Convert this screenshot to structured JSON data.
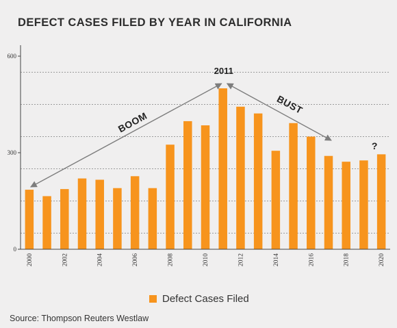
{
  "chart_data": {
    "type": "bar",
    "title": "DEFECT CASES FILED BY YEAR IN CALIFORNIA",
    "categories": [
      "2000",
      "2001",
      "2002",
      "2003",
      "2004",
      "2005",
      "2006",
      "2007",
      "2008",
      "2009",
      "2010",
      "2011",
      "2012",
      "2013",
      "2014",
      "2015",
      "2016",
      "2017",
      "2018",
      "2019",
      "2020"
    ],
    "x_tick_labels": [
      "2000",
      "2002",
      "2004",
      "2006",
      "2008",
      "2010",
      "2012",
      "2014",
      "2016",
      "2018",
      "2020"
    ],
    "series": [
      {
        "name": "Defect Cases Filed",
        "color": "#f7941d",
        "values": [
          185,
          165,
          187,
          220,
          216,
          190,
          227,
          190,
          325,
          398,
          385,
          500,
          443,
          422,
          306,
          392,
          350,
          290,
          272,
          276,
          295
        ]
      }
    ],
    "ylim": [
      0,
      600
    ],
    "y_tick_labels": [
      "0",
      "300",
      "600"
    ],
    "grid": true,
    "grid_style": "dashed",
    "legend_position": "bottom-center",
    "annotations": [
      {
        "text": "BOOM",
        "from_year": "2000",
        "to_year": "2011"
      },
      {
        "text": "BUST",
        "from_year": "2011",
        "to_year": "2017"
      },
      {
        "text": "2011",
        "at_year": "2011"
      },
      {
        "text": "?",
        "at_year": "2020"
      }
    ]
  },
  "source": "Source: Thompson Reuters Westlaw"
}
